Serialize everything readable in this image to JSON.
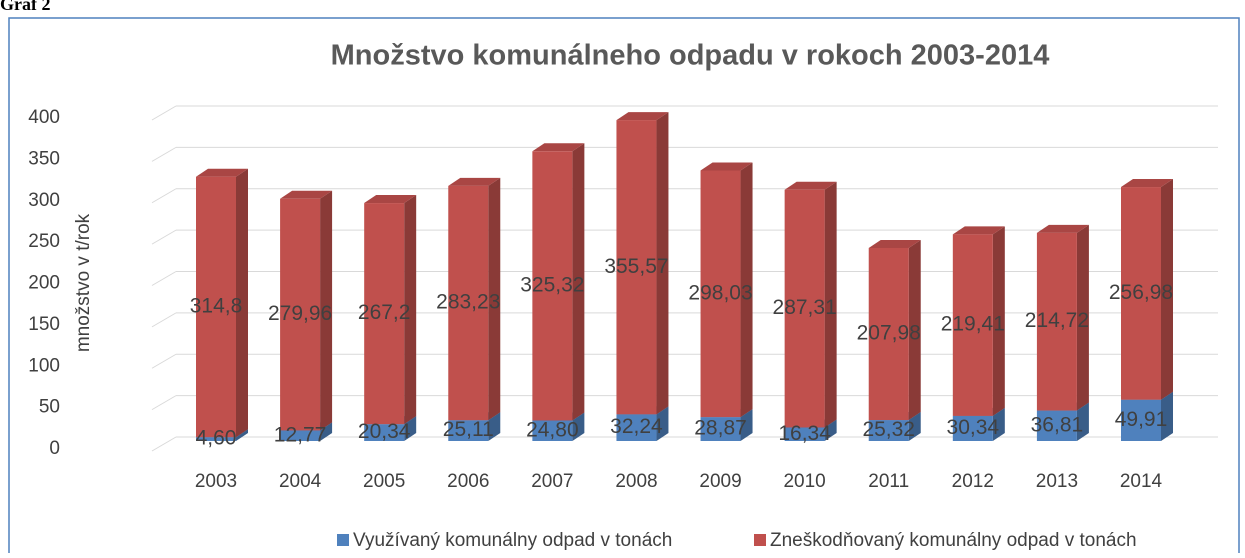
{
  "caption": "Graf 2",
  "chart_data": {
    "type": "bar3d-stacked",
    "title": "Množstvo komunálneho odpadu v rokoch 2003-2014",
    "y_label": "množstvo v t/rok",
    "categories": [
      "2003",
      "2004",
      "2005",
      "2006",
      "2007",
      "2008",
      "2009",
      "2010",
      "2011",
      "2012",
      "2013",
      "2014"
    ],
    "series": [
      {
        "name": "Využívaný komunálny odpad v tonách",
        "color": "#4f81bd",
        "values": [
          4.6,
          12.77,
          20.34,
          25.11,
          24.8,
          32.24,
          28.87,
          16.34,
          25.32,
          30.34,
          36.81,
          49.91
        ],
        "value_labels": [
          "4,60",
          "12,77",
          "20,34",
          "25,11",
          "24,80",
          "32,24",
          "28,87",
          "16,34",
          "25,32",
          "30,34",
          "36,81",
          "49,91"
        ]
      },
      {
        "name": "Zneškodňovaný komunálny odpad v tonách",
        "color": "#c0504d",
        "values": [
          314.8,
          279.96,
          267.2,
          283.23,
          325.32,
          355.57,
          298.03,
          287.31,
          207.98,
          219.41,
          214.72,
          256.98
        ],
        "value_labels": [
          "314,8",
          "279,96",
          "267,2",
          "283,23",
          "325,32",
          "355,57",
          "298,03",
          "287,31",
          "207,98",
          "219,41",
          "214,72",
          "256,98"
        ]
      }
    ],
    "ylim": [
      0,
      400
    ],
    "yticks": [
      0,
      50,
      100,
      150,
      200,
      250,
      300,
      350,
      400
    ],
    "grid": true,
    "legend": "bottom"
  }
}
